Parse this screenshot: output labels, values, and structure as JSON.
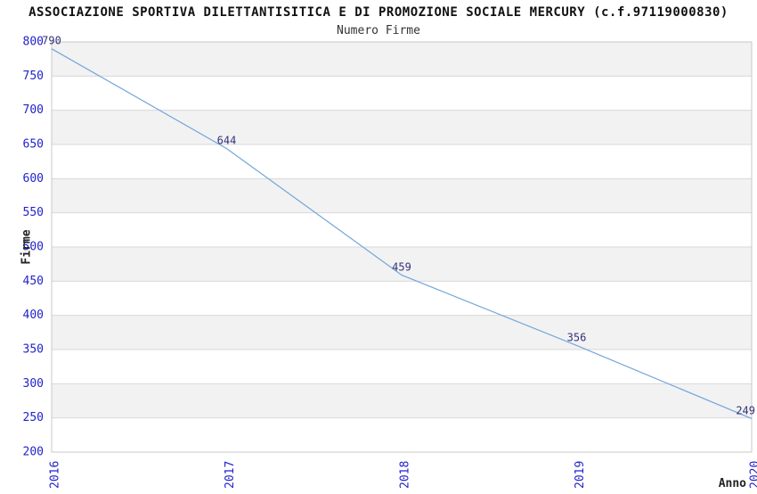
{
  "header": {
    "title": "ASSOCIAZIONE SPORTIVA DILETTANTISITICA E DI PROMOZIONE SOCIALE MERCURY (c.f.97119000830)",
    "subtitle": "Numero Firme"
  },
  "chart_data": {
    "type": "line",
    "title": "ASSOCIAZIONE SPORTIVA DILETTANTISITICA E DI PROMOZIONE SOCIALE MERCURY (c.f.97119000830)",
    "subtitle": "Numero Firme",
    "categories": [
      "2016",
      "2017",
      "2018",
      "2019",
      "2020"
    ],
    "values": [
      790,
      644,
      459,
      356,
      249
    ],
    "point_labels": [
      "790",
      "644",
      "459",
      "356",
      "249"
    ],
    "xlabel": "Anno",
    "ylabel": "Firme",
    "ylim": [
      200,
      800
    ],
    "ytick_step": 50,
    "ytick_labels": [
      "200",
      "250",
      "300",
      "350",
      "400",
      "450",
      "500",
      "550",
      "600",
      "650",
      "700",
      "750",
      "800"
    ],
    "grid": true,
    "banded_background": true,
    "legend": "none",
    "colors": {
      "line": "#72A5DB",
      "tick_label": "#2222CC",
      "point_label": "#333377",
      "band_fill": "#F2F2F2",
      "band_alt_fill": "#FFFFFF",
      "gridline": "#D8D8D8",
      "plot_border": "#C8C8C8",
      "axis_title": "#222222",
      "title_color": "#111111",
      "background": "#FFFFFF"
    }
  }
}
